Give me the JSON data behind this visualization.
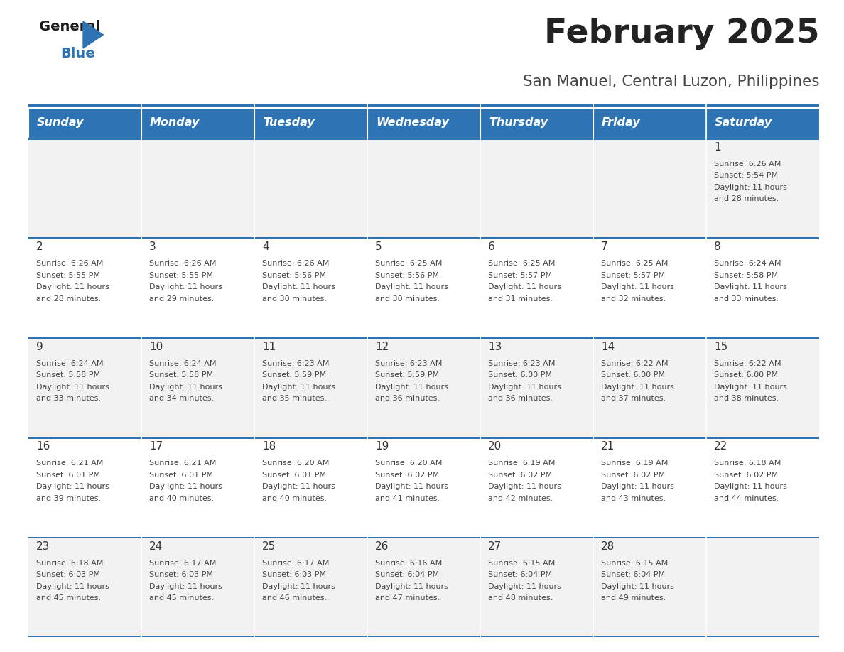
{
  "title": "February 2025",
  "subtitle": "San Manuel, Central Luzon, Philippines",
  "days_of_week": [
    "Sunday",
    "Monday",
    "Tuesday",
    "Wednesday",
    "Thursday",
    "Friday",
    "Saturday"
  ],
  "header_bg": "#2E74B5",
  "header_text": "#FFFFFF",
  "row_bg_light": "#F2F2F2",
  "row_bg_white": "#FFFFFF",
  "border_color": "#2E74B5",
  "text_color": "#333333",
  "cell_data": [
    [
      null,
      null,
      null,
      null,
      null,
      null,
      {
        "day": "1",
        "sunrise": "6:26 AM",
        "sunset": "5:54 PM",
        "daylight": "11 hours",
        "daylight2": "and 28 minutes."
      }
    ],
    [
      {
        "day": "2",
        "sunrise": "6:26 AM",
        "sunset": "5:55 PM",
        "daylight": "11 hours",
        "daylight2": "and 28 minutes."
      },
      {
        "day": "3",
        "sunrise": "6:26 AM",
        "sunset": "5:55 PM",
        "daylight": "11 hours",
        "daylight2": "and 29 minutes."
      },
      {
        "day": "4",
        "sunrise": "6:26 AM",
        "sunset": "5:56 PM",
        "daylight": "11 hours",
        "daylight2": "and 30 minutes."
      },
      {
        "day": "5",
        "sunrise": "6:25 AM",
        "sunset": "5:56 PM",
        "daylight": "11 hours",
        "daylight2": "and 30 minutes."
      },
      {
        "day": "6",
        "sunrise": "6:25 AM",
        "sunset": "5:57 PM",
        "daylight": "11 hours",
        "daylight2": "and 31 minutes."
      },
      {
        "day": "7",
        "sunrise": "6:25 AM",
        "sunset": "5:57 PM",
        "daylight": "11 hours",
        "daylight2": "and 32 minutes."
      },
      {
        "day": "8",
        "sunrise": "6:24 AM",
        "sunset": "5:58 PM",
        "daylight": "11 hours",
        "daylight2": "and 33 minutes."
      }
    ],
    [
      {
        "day": "9",
        "sunrise": "6:24 AM",
        "sunset": "5:58 PM",
        "daylight": "11 hours",
        "daylight2": "and 33 minutes."
      },
      {
        "day": "10",
        "sunrise": "6:24 AM",
        "sunset": "5:58 PM",
        "daylight": "11 hours",
        "daylight2": "and 34 minutes."
      },
      {
        "day": "11",
        "sunrise": "6:23 AM",
        "sunset": "5:59 PM",
        "daylight": "11 hours",
        "daylight2": "and 35 minutes."
      },
      {
        "day": "12",
        "sunrise": "6:23 AM",
        "sunset": "5:59 PM",
        "daylight": "11 hours",
        "daylight2": "and 36 minutes."
      },
      {
        "day": "13",
        "sunrise": "6:23 AM",
        "sunset": "6:00 PM",
        "daylight": "11 hours",
        "daylight2": "and 36 minutes."
      },
      {
        "day": "14",
        "sunrise": "6:22 AM",
        "sunset": "6:00 PM",
        "daylight": "11 hours",
        "daylight2": "and 37 minutes."
      },
      {
        "day": "15",
        "sunrise": "6:22 AM",
        "sunset": "6:00 PM",
        "daylight": "11 hours",
        "daylight2": "and 38 minutes."
      }
    ],
    [
      {
        "day": "16",
        "sunrise": "6:21 AM",
        "sunset": "6:01 PM",
        "daylight": "11 hours",
        "daylight2": "and 39 minutes."
      },
      {
        "day": "17",
        "sunrise": "6:21 AM",
        "sunset": "6:01 PM",
        "daylight": "11 hours",
        "daylight2": "and 40 minutes."
      },
      {
        "day": "18",
        "sunrise": "6:20 AM",
        "sunset": "6:01 PM",
        "daylight": "11 hours",
        "daylight2": "and 40 minutes."
      },
      {
        "day": "19",
        "sunrise": "6:20 AM",
        "sunset": "6:02 PM",
        "daylight": "11 hours",
        "daylight2": "and 41 minutes."
      },
      {
        "day": "20",
        "sunrise": "6:19 AM",
        "sunset": "6:02 PM",
        "daylight": "11 hours",
        "daylight2": "and 42 minutes."
      },
      {
        "day": "21",
        "sunrise": "6:19 AM",
        "sunset": "6:02 PM",
        "daylight": "11 hours",
        "daylight2": "and 43 minutes."
      },
      {
        "day": "22",
        "sunrise": "6:18 AM",
        "sunset": "6:02 PM",
        "daylight": "11 hours",
        "daylight2": "and 44 minutes."
      }
    ],
    [
      {
        "day": "23",
        "sunrise": "6:18 AM",
        "sunset": "6:03 PM",
        "daylight": "11 hours",
        "daylight2": "and 45 minutes."
      },
      {
        "day": "24",
        "sunrise": "6:17 AM",
        "sunset": "6:03 PM",
        "daylight": "11 hours",
        "daylight2": "and 45 minutes."
      },
      {
        "day": "25",
        "sunrise": "6:17 AM",
        "sunset": "6:03 PM",
        "daylight": "11 hours",
        "daylight2": "and 46 minutes."
      },
      {
        "day": "26",
        "sunrise": "6:16 AM",
        "sunset": "6:04 PM",
        "daylight": "11 hours",
        "daylight2": "and 47 minutes."
      },
      {
        "day": "27",
        "sunrise": "6:15 AM",
        "sunset": "6:04 PM",
        "daylight": "11 hours",
        "daylight2": "and 48 minutes."
      },
      {
        "day": "28",
        "sunrise": "6:15 AM",
        "sunset": "6:04 PM",
        "daylight": "11 hours",
        "daylight2": "and 49 minutes."
      },
      null
    ]
  ]
}
